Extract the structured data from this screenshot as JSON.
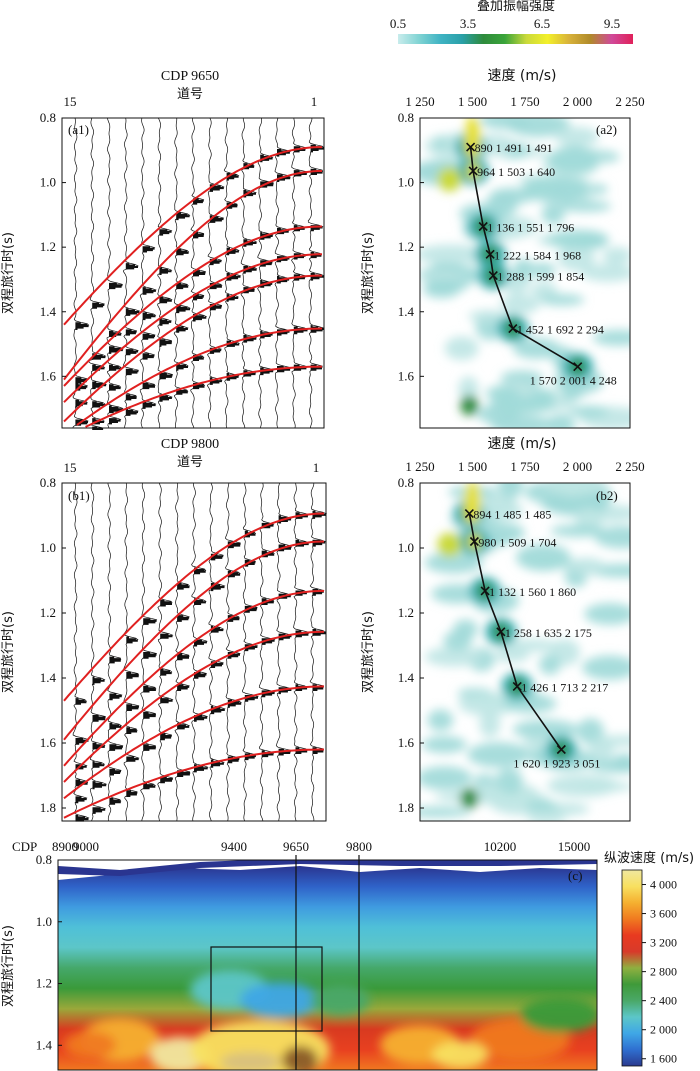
{
  "colorbar_top": {
    "title": "叠加振幅强度",
    "tick_labels": [
      "0.5",
      "3.5",
      "6.5",
      "9.5"
    ],
    "range": [
      0.5,
      10.0
    ],
    "colors": [
      "#c8ecec",
      "#7fd3d3",
      "#3fb3c3",
      "#2aa0a8",
      "#2e8b3c",
      "#3aa43a",
      "#c9d93b",
      "#f3f02a",
      "#d8b23a",
      "#b08a2a",
      "#d04a9a",
      "#e0205a"
    ]
  },
  "colorbar_bottom": {
    "title": "纵波速度 (m/s)",
    "tick_labels": [
      "1 600",
      "2 000",
      "2 400",
      "2 800",
      "3 200",
      "3 600",
      "4 000"
    ],
    "range": [
      1500,
      4200
    ],
    "colors": [
      "#2a3a8f",
      "#2f6fd0",
      "#3fa7e6",
      "#5cc6c8",
      "#4aa868",
      "#3f9a3a",
      "#8fb040",
      "#d83a2a",
      "#e83a20",
      "#f07a20",
      "#f5b030",
      "#f8e060",
      "#f0e8a0"
    ]
  },
  "panels": {
    "a1": {
      "title": "CDP 9650",
      "xlabel": "道号",
      "ylabel": "双程旅行时(s)",
      "panel_label": "(a1)",
      "trace_labels": [
        "15",
        "1"
      ]
    },
    "a2": {
      "title": "速度  (m/s)",
      "ylabel": "双程旅行时(s)",
      "panel_label": "(a2)",
      "xtick_labels": [
        "1 250",
        "1 500",
        "1 750",
        "2 000",
        "2 250"
      ]
    },
    "b1": {
      "title": "CDP 9800",
      "xlabel": "道号",
      "ylabel": "双程旅行时(s)",
      "panel_label": "(b1)",
      "trace_labels": [
        "15",
        "1"
      ]
    },
    "b2": {
      "title": "速度  (m/s)",
      "ylabel": "双程旅行时(s)",
      "panel_label": "(b2)",
      "xtick_labels": [
        "1 250",
        "1 500",
        "1 750",
        "2 000",
        "2 250"
      ]
    },
    "c": {
      "ylabel": "双程旅行时(s)",
      "panel_label": "(c)",
      "cdp_prefix": "CDP",
      "cdp_labels": [
        "8900",
        "9000",
        "9400",
        "9650",
        "9800",
        "10200",
        "15000"
      ],
      "cdp_marker_lines": [
        "9650",
        "9800"
      ],
      "highlight_box": {
        "cdp_from": "9400",
        "cdp_to": "9650",
        "time_from": 1.12,
        "time_to": 1.3
      }
    }
  },
  "chart_data": [
    {
      "type": "line",
      "id": "a1",
      "title": "CDP 9650",
      "xlabel": "道号",
      "ylabel": "双程旅行时(s)",
      "traces": 15,
      "ylim": [
        0.8,
        1.76
      ],
      "yticks": [
        0.8,
        1.0,
        1.2,
        1.4,
        1.6
      ],
      "ytick_labels": [
        "0.8",
        "1.0",
        "1.2",
        "1.4",
        "1.6"
      ],
      "hyperbolae_t0": [
        0.89,
        0.964,
        1.136,
        1.222,
        1.288,
        1.452,
        1.57
      ],
      "hyperbolae_far_t": [
        1.44,
        1.61,
        1.63,
        1.68,
        1.74,
        1.78,
        1.79
      ],
      "curve_color": "#e02020"
    },
    {
      "type": "scatter",
      "id": "a2",
      "title": "速度  (m/s)",
      "ylabel": "双程旅行时(s)",
      "xlim": [
        1250,
        2250
      ],
      "ylim": [
        0.8,
        1.76
      ],
      "xticks": [
        1250,
        1500,
        1750,
        2000,
        2250
      ],
      "yticks": [
        0.8,
        1.0,
        1.2,
        1.4,
        1.6
      ],
      "ytick_labels": [
        "0.8",
        "1.0",
        "1.2",
        "1.4",
        "1.6"
      ],
      "picks": [
        {
          "t": 0.89,
          "v": 1491,
          "vint": 1491,
          "label": "890  1 491  1 491"
        },
        {
          "t": 0.964,
          "v": 1503,
          "vint": 1640,
          "label": "964  1 503  1 640"
        },
        {
          "t": 1.136,
          "v": 1551,
          "vint": 1796,
          "label": "1 136  1 551  1 796"
        },
        {
          "t": 1.222,
          "v": 1584,
          "vint": 1968,
          "label": "1 222  1 584  1 968"
        },
        {
          "t": 1.288,
          "v": 1599,
          "vint": 1854,
          "label": "1 288  1 599  1 854"
        },
        {
          "t": 1.452,
          "v": 1692,
          "vint": 2294,
          "label": "1 452  1 692  2 294"
        },
        {
          "t": 1.57,
          "v": 2001,
          "vint": 4248,
          "label": "1 570  2 001  4 248"
        }
      ]
    },
    {
      "type": "line",
      "id": "b1",
      "title": "CDP 9800",
      "xlabel": "道号",
      "ylabel": "双程旅行时(s)",
      "traces": 15,
      "ylim": [
        0.8,
        1.84
      ],
      "yticks": [
        0.8,
        1.0,
        1.2,
        1.4,
        1.6,
        1.8
      ],
      "ytick_labels": [
        "0.8",
        "1.0",
        "1.2",
        "1.4",
        "1.6",
        "1.8"
      ],
      "hyperbolae_t0": [
        0.894,
        0.98,
        1.132,
        1.258,
        1.426,
        1.62
      ],
      "hyperbolae_far_t": [
        1.47,
        1.59,
        1.67,
        1.72,
        1.77,
        1.83
      ],
      "curve_color": "#e02020"
    },
    {
      "type": "scatter",
      "id": "b2",
      "title": "速度  (m/s)",
      "ylabel": "双程旅行时(s)",
      "xlim": [
        1250,
        2250
      ],
      "ylim": [
        0.8,
        1.84
      ],
      "xticks": [
        1250,
        1500,
        1750,
        2000,
        2250
      ],
      "yticks": [
        0.8,
        1.0,
        1.2,
        1.4,
        1.6,
        1.8
      ],
      "ytick_labels": [
        "0.8",
        "1.0",
        "1.2",
        "1.4",
        "1.6",
        "1.8"
      ],
      "picks": [
        {
          "t": 0.894,
          "v": 1485,
          "vint": 1485,
          "label": "894  1 485  1 485"
        },
        {
          "t": 0.98,
          "v": 1509,
          "vint": 1704,
          "label": "980  1 509  1 704"
        },
        {
          "t": 1.132,
          "v": 1560,
          "vint": 1860,
          "label": "1 132  1 560  1 860"
        },
        {
          "t": 1.258,
          "v": 1635,
          "vint": 2175,
          "label": "1 258  1 635  2 175"
        },
        {
          "t": 1.426,
          "v": 1713,
          "vint": 2217,
          "label": "1 426  1 713  2 217"
        },
        {
          "t": 1.62,
          "v": 1923,
          "vint": 3051,
          "label": "1 620  1 923  3 051"
        }
      ]
    },
    {
      "type": "heatmap",
      "id": "c",
      "ylabel": "双程旅行时(s)",
      "xlabel": "CDP",
      "ylim": [
        0.8,
        1.48
      ],
      "yticks": [
        0.8,
        1.0,
        1.2,
        1.4
      ],
      "ytick_labels": [
        "0.8",
        "1.0",
        "1.2",
        "1.4"
      ],
      "value_range": [
        1600,
        4000
      ],
      "colorbar_title": "纵波速度 (m/s)"
    }
  ]
}
